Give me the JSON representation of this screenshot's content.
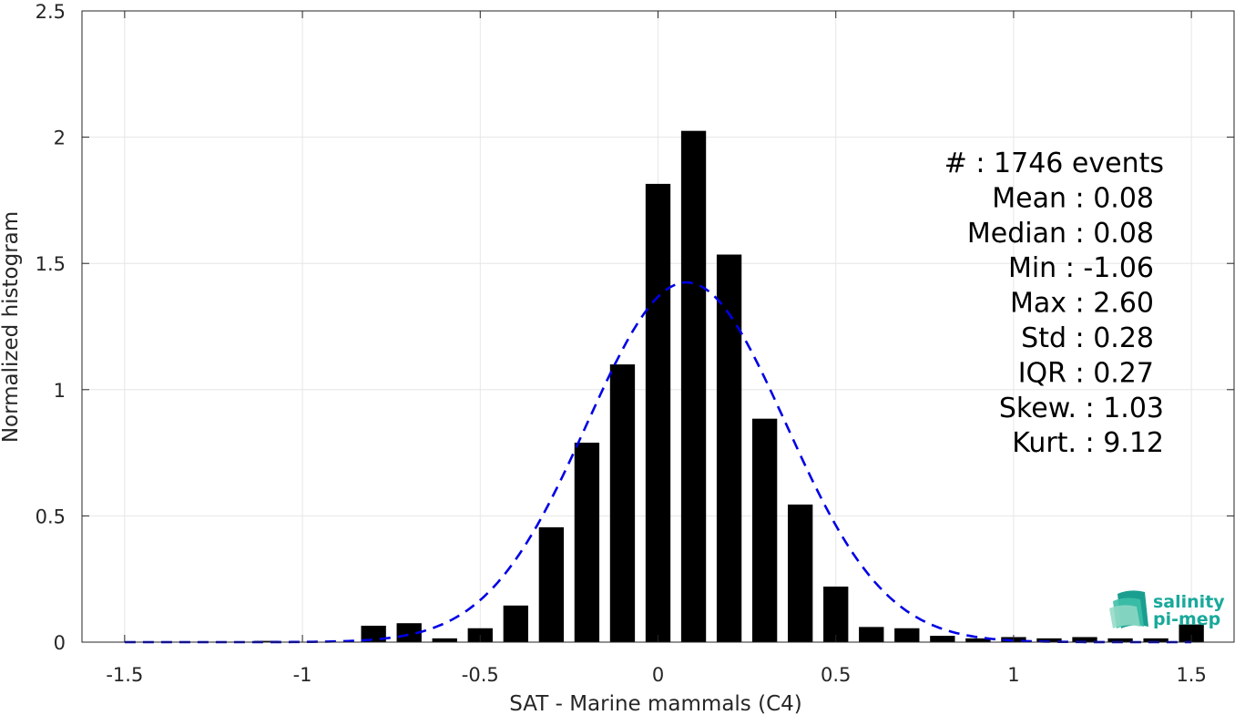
{
  "chart_data": {
    "type": "bar",
    "xlabel": "SAT - Marine mammals (C4)",
    "ylabel": "Normalized histogram",
    "xlim": [
      -1.62,
      1.62
    ],
    "ylim": [
      0,
      2.5
    ],
    "x_ticks": [
      "-1.5",
      "-1",
      "-0.5",
      "0",
      "0.5",
      "1",
      "1.5"
    ],
    "y_ticks": [
      "0",
      "0.5",
      "1",
      "1.5",
      "2",
      "2.5"
    ],
    "grid": true,
    "bar_width": 0.07,
    "bars": [
      {
        "x": -1.1,
        "value": 0.005
      },
      {
        "x": -0.8,
        "value": 0.065
      },
      {
        "x": -0.7,
        "value": 0.075
      },
      {
        "x": -0.6,
        "value": 0.015
      },
      {
        "x": -0.5,
        "value": 0.055
      },
      {
        "x": -0.4,
        "value": 0.145
      },
      {
        "x": -0.3,
        "value": 0.455
      },
      {
        "x": -0.2,
        "value": 0.79
      },
      {
        "x": -0.1,
        "value": 1.1
      },
      {
        "x": 0.0,
        "value": 1.815
      },
      {
        "x": 0.1,
        "value": 2.025
      },
      {
        "x": 0.2,
        "value": 1.535
      },
      {
        "x": 0.3,
        "value": 0.885
      },
      {
        "x": 0.4,
        "value": 0.545
      },
      {
        "x": 0.5,
        "value": 0.22
      },
      {
        "x": 0.6,
        "value": 0.06
      },
      {
        "x": 0.7,
        "value": 0.055
      },
      {
        "x": 0.8,
        "value": 0.025
      },
      {
        "x": 0.9,
        "value": 0.015
      },
      {
        "x": 1.0,
        "value": 0.02
      },
      {
        "x": 1.1,
        "value": 0.015
      },
      {
        "x": 1.2,
        "value": 0.02
      },
      {
        "x": 1.3,
        "value": 0.015
      },
      {
        "x": 1.4,
        "value": 0.015
      },
      {
        "x": 1.5,
        "value": 0.07
      }
    ],
    "fit_curve": {
      "style": "dashed",
      "color": "#0000e6",
      "mean": 0.08,
      "std": 0.28,
      "x_range": [
        -1.5,
        1.5
      ]
    },
    "bar_color": "#000000",
    "stats": [
      {
        "label": "#  : 1746 events"
      },
      {
        "label": "Mean : 0.08"
      },
      {
        "label": "Median : 0.08"
      },
      {
        "label": "Min : -1.06"
      },
      {
        "label": "Max : 2.60"
      },
      {
        "label": "Std : 0.28"
      },
      {
        "label": "IQR : 0.27"
      },
      {
        "label": "Skew. : 1.03"
      },
      {
        "label": "Kurt. : 9.12"
      }
    ]
  },
  "logo": {
    "line1": "salinity",
    "line2": "pi-mep",
    "icon": "layered-wave-icon",
    "color": "#19a99a"
  }
}
